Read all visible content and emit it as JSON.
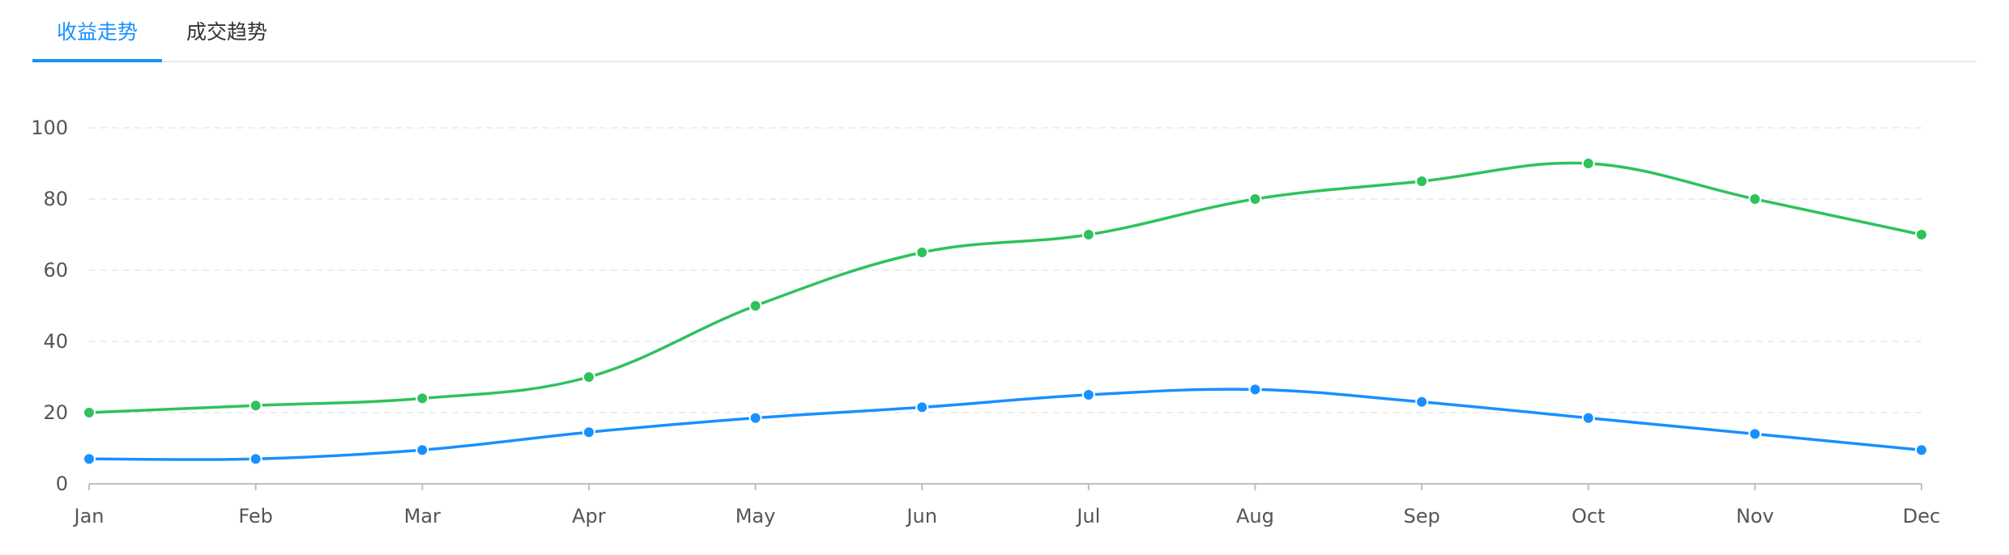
{
  "tabs": [
    {
      "label": "收益走势",
      "active": true
    },
    {
      "label": "成交趋势",
      "active": false
    }
  ],
  "colors": {
    "accent": "#1890ff",
    "series_blue": "#1890ff",
    "series_green": "#2fc25b",
    "grid": "#e8e8e8",
    "axis": "#bfbfbf"
  },
  "chart_data": {
    "type": "line",
    "categories": [
      "Jan",
      "Feb",
      "Mar",
      "Apr",
      "May",
      "Jun",
      "Jul",
      "Aug",
      "Sep",
      "Oct",
      "Nov",
      "Dec"
    ],
    "series": [
      {
        "color": "#2fc25b",
        "values": [
          20,
          22,
          24,
          30,
          50,
          65,
          70,
          80,
          85,
          90,
          80,
          70
        ]
      },
      {
        "color": "#1890ff",
        "values": [
          7,
          7,
          9.5,
          14.5,
          18.5,
          21.5,
          25,
          26.5,
          23,
          18.5,
          14,
          9.5
        ]
      }
    ],
    "ylim": [
      0,
      100
    ],
    "yticks": [
      0,
      20,
      40,
      60,
      80,
      100
    ],
    "grid": true,
    "smooth": true
  }
}
